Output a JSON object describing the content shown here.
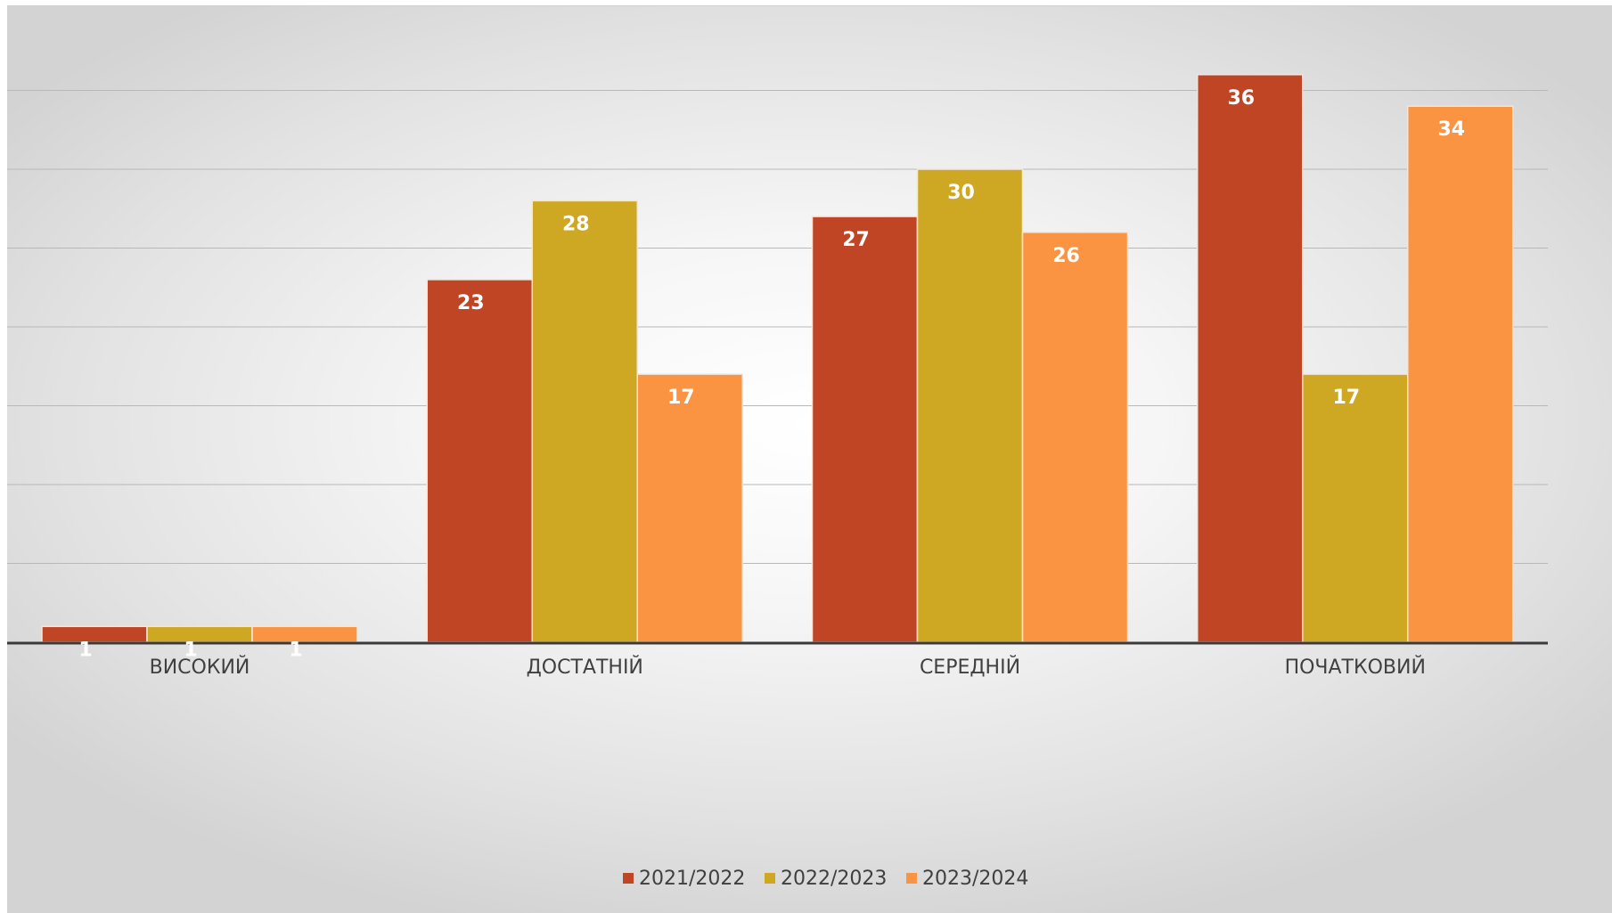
{
  "chart_data": {
    "type": "bar",
    "title": "",
    "xlabel": "",
    "ylabel": "",
    "categories": [
      "ВИСОКИЙ",
      "ДОСТАТНІЙ",
      "СЕРЕДНІЙ",
      "ПОЧАТКОВИЙ"
    ],
    "series": [
      {
        "name": "2021/2022",
        "color": "#bf4525",
        "values": [
          1,
          23,
          27,
          36
        ]
      },
      {
        "name": "2022/2023",
        "color": "#cfa823",
        "values": [
          1,
          28,
          30,
          17
        ]
      },
      {
        "name": "2023/2024",
        "color": "#fb9442",
        "values": [
          1,
          17,
          26,
          34
        ]
      }
    ],
    "ylim": [
      0,
      40
    ],
    "grid": true,
    "gridline_step": 5,
    "data_labels": true,
    "legend_position": "bottom"
  }
}
